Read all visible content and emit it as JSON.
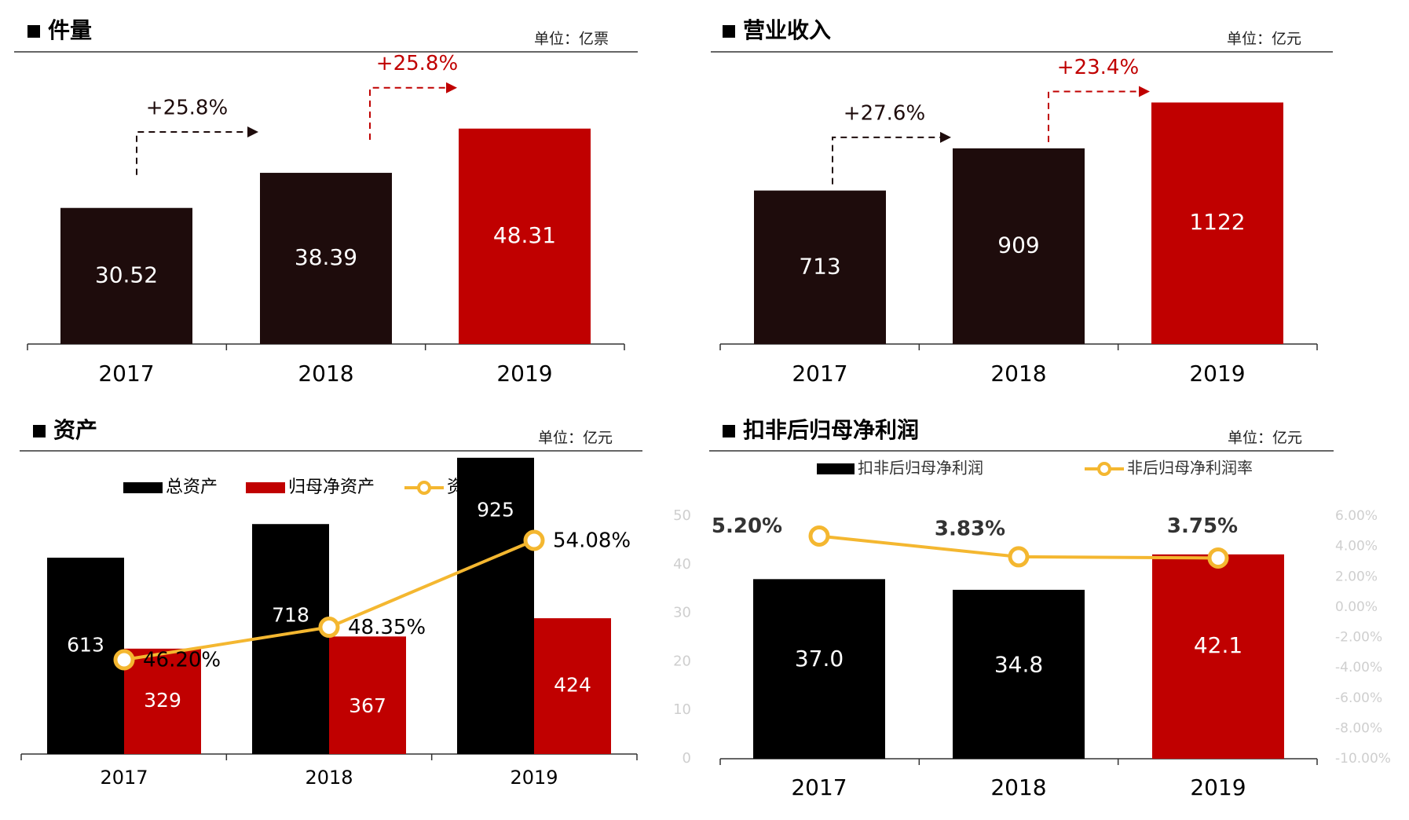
{
  "colors": {
    "dark": "#1e0c0c",
    "black": "#000000",
    "red": "#c00000",
    "yellow": "#f4b730",
    "faint": "#cfcfcf"
  },
  "chart_data": [
    {
      "type": "bar",
      "title": "件量",
      "unit": "单位：亿票",
      "categories": [
        "2017",
        "2018",
        "2019"
      ],
      "values": [
        30.52,
        38.39,
        48.31
      ],
      "value_labels": [
        "30.52",
        "38.39",
        "48.31"
      ],
      "highlight": [
        false,
        false,
        true
      ],
      "growth": [
        {
          "label": "+25.8%",
          "from": 0,
          "to": 1,
          "color": "dark"
        },
        {
          "label": "+25.8%",
          "from": 1,
          "to": 2,
          "color": "red"
        }
      ]
    },
    {
      "type": "bar",
      "title": "营业收入",
      "unit": "单位：亿元",
      "categories": [
        "2017",
        "2018",
        "2019"
      ],
      "values": [
        713,
        909,
        1122
      ],
      "value_labels": [
        "713",
        "909",
        "1122"
      ],
      "highlight": [
        false,
        false,
        true
      ],
      "growth": [
        {
          "label": "+27.6%",
          "from": 0,
          "to": 1,
          "color": "dark"
        },
        {
          "label": "+23.4%",
          "from": 1,
          "to": 2,
          "color": "red"
        }
      ]
    },
    {
      "type": "bar",
      "title": "资产",
      "unit": "单位：亿元",
      "categories": [
        "2017",
        "2018",
        "2019"
      ],
      "series": [
        {
          "name": "总资产",
          "values": [
            613,
            718,
            925
          ],
          "labels": [
            "613",
            "718",
            "925"
          ]
        },
        {
          "name": "归母净资产",
          "values": [
            329,
            367,
            424
          ],
          "labels": [
            "329",
            "367",
            "424"
          ]
        },
        {
          "name": "资产负债率",
          "type": "line",
          "values": [
            46.2,
            48.35,
            54.08
          ],
          "labels": [
            "46.20%",
            "48.35%",
            "54.08%"
          ]
        }
      ]
    },
    {
      "type": "bar",
      "title": "扣非后归母净利润",
      "unit": "单位：亿元",
      "categories": [
        "2017",
        "2018",
        "2019"
      ],
      "ylim": [
        0,
        50
      ],
      "y_ticks": [
        "0",
        "10",
        "20",
        "30",
        "40",
        "50"
      ],
      "y2_ticks": [
        "-10.00%",
        "-8.00%",
        "-6.00%",
        "-4.00%",
        "-2.00%",
        "0.00%",
        "2.00%",
        "4.00%",
        "6.00%"
      ],
      "series": [
        {
          "name": "扣非后归母净利润",
          "values": [
            37.0,
            34.8,
            42.1
          ],
          "labels": [
            "37.0",
            "34.8",
            "42.1"
          ]
        },
        {
          "name": "非后归母净利润率",
          "type": "line",
          "values": [
            5.2,
            3.83,
            3.75
          ],
          "labels": [
            "5.20%",
            "3.83%",
            "3.75%"
          ]
        }
      ]
    }
  ]
}
